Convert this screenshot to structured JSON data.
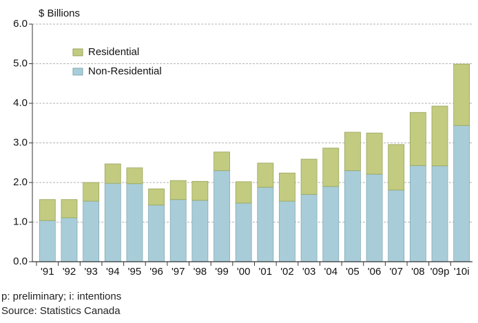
{
  "chart_data": {
    "type": "stacked_bar",
    "y_axis_label": "$ Billions",
    "categories": [
      "'91",
      "'92",
      "'93",
      "'94",
      "'95",
      "'96",
      "'97",
      "'98",
      "'99",
      "'00",
      "'01",
      "'02",
      "'03",
      "'04",
      "'05",
      "'06",
      "'07",
      "'08",
      "'09p",
      "'10i"
    ],
    "series": [
      {
        "name": "Non-Residential",
        "color": "#a9cdd8",
        "values": [
          1.04,
          1.11,
          1.53,
          1.98,
          1.97,
          1.43,
          1.57,
          1.55,
          2.3,
          1.48,
          1.88,
          1.53,
          1.7,
          1.9,
          2.3,
          2.21,
          1.81,
          2.43,
          2.42,
          3.44
        ]
      },
      {
        "name": "Residential",
        "color": "#c2cb80",
        "values": [
          0.53,
          0.46,
          0.47,
          0.49,
          0.4,
          0.41,
          0.48,
          0.48,
          0.47,
          0.54,
          0.61,
          0.71,
          0.89,
          0.97,
          0.97,
          1.04,
          1.15,
          1.34,
          1.51,
          1.55
        ]
      }
    ],
    "ylim": [
      0,
      6
    ],
    "yticks": [
      {
        "value": 0,
        "label": "0.0"
      },
      {
        "value": 1,
        "label": "1.0"
      },
      {
        "value": 2,
        "label": "2.0"
      },
      {
        "value": 3,
        "label": "3.0"
      },
      {
        "value": 4,
        "label": "4.0"
      },
      {
        "value": 5,
        "label": "5.0"
      },
      {
        "value": 6,
        "label": "6.0"
      }
    ],
    "grid": true,
    "legend_position": "upper left",
    "footnotes": [
      "p: preliminary; i: intentions",
      "Source: Statistics Canada"
    ]
  }
}
